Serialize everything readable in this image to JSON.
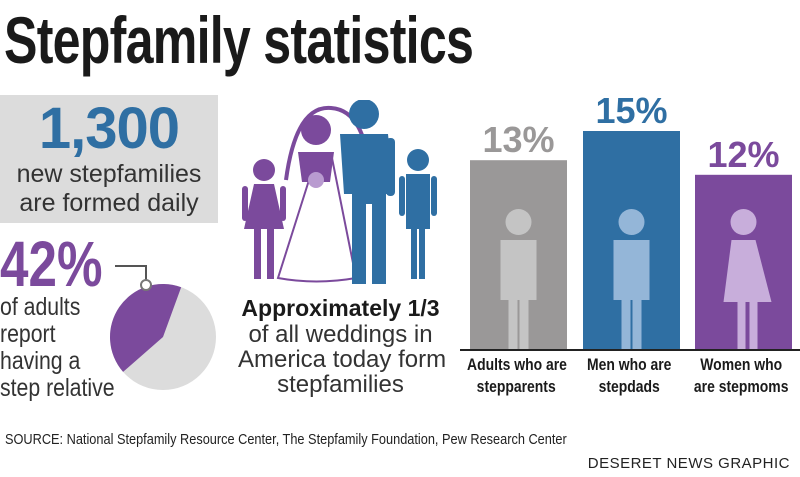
{
  "title": "Stepfamily statistics",
  "stat_daily": {
    "number": "1,300",
    "line1": "new stepfamilies",
    "line2": "are formed daily"
  },
  "stat_relative": {
    "number": "42%",
    "value": 42,
    "lines": [
      "of adults",
      "report",
      "having a",
      "step relative"
    ]
  },
  "stat_weddings": {
    "headline": "Approximately 1/3",
    "lines": [
      "of all weddings in",
      "America today form",
      "stepfamilies"
    ]
  },
  "chart_data": {
    "type": "bar",
    "title": "",
    "xlabel": "",
    "ylabel": "",
    "ylim": [
      0,
      15
    ],
    "grid": false,
    "categories": [
      "Adults who are stepparents",
      "Men who are stepdads",
      "Women who are stepmoms"
    ],
    "category_lines": [
      [
        "Adults who are",
        "stepparents"
      ],
      [
        "Men who are",
        "stepdads"
      ],
      [
        "Women who",
        "are stepmoms"
      ]
    ],
    "values": [
      13,
      15,
      12
    ],
    "labels": [
      "13%",
      "15%",
      "12%"
    ],
    "colors": [
      "#9a9898",
      "#2f6fa3",
      "#7b4a9c"
    ],
    "figure_colors": [
      "#c4c4c4",
      "#94b6d8",
      "#c8aedb"
    ]
  },
  "colors": {
    "blue": "#2f6fa3",
    "purple": "#7b4a9c",
    "gray_box": "#dcdcdc",
    "pie_bg": "#dcdcdc"
  },
  "source": "SOURCE: National Stepfamily Resource Center, The Stepfamily Foundation, Pew Research Center",
  "credit": "DESERET NEWS GRAPHIC"
}
